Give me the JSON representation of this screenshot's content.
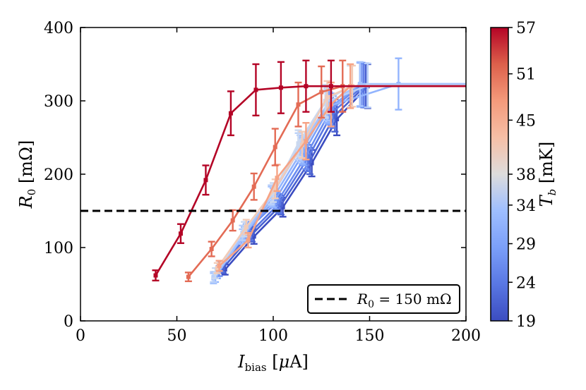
{
  "chart_data": {
    "type": "line",
    "xlabel": "I_bias [μA]",
    "ylabel": "R_0 [mΩ]",
    "xlim": [
      0,
      200
    ],
    "ylim": [
      0,
      400
    ],
    "xticks": [
      "0",
      "50",
      "100",
      "150",
      "200"
    ],
    "yticks": [
      "0",
      "100",
      "200",
      "300",
      "400"
    ],
    "grid": false,
    "legend": {
      "placement": "lower-right",
      "entries": [
        {
          "label": "R_0 = 150 mΩ",
          "style": "dashed",
          "color": "#000000"
        }
      ]
    },
    "hline": {
      "y": 150,
      "style": "dashed",
      "color": "#000000"
    },
    "colorbar": {
      "label": "T_b [mK]",
      "range": [
        19,
        57
      ],
      "ticks": [
        "19",
        "24",
        "29",
        "34",
        "38",
        "45",
        "51",
        "57"
      ],
      "colormap": "coolwarm"
    },
    "series": [
      {
        "T": 19,
        "color": "#3b4cc0",
        "x": [
          75,
          90,
          105,
          120,
          133,
          149
        ],
        "y": [
          70,
          115,
          155,
          215,
          275,
          320
        ],
        "err": [
          7,
          10,
          13,
          18,
          22,
          30
        ]
      },
      {
        "T": 22,
        "color": "#4961d2",
        "x": [
          74,
          89,
          104,
          119,
          132,
          148
        ],
        "y": [
          72,
          118,
          158,
          218,
          280,
          321
        ],
        "err": [
          7,
          10,
          13,
          18,
          22,
          30
        ]
      },
      {
        "T": 24,
        "color": "#5977e3",
        "x": [
          73,
          88,
          103,
          118,
          131,
          147
        ],
        "y": [
          74,
          120,
          160,
          222,
          285,
          321
        ],
        "err": [
          7,
          10,
          13,
          18,
          22,
          30
        ]
      },
      {
        "T": 27,
        "color": "#6b8df0",
        "x": [
          72,
          87,
          102,
          117,
          130,
          146
        ],
        "y": [
          68,
          125,
          162,
          225,
          288,
          322
        ],
        "err": [
          7,
          10,
          13,
          18,
          22,
          30
        ]
      },
      {
        "T": 29,
        "color": "#7ea2f9",
        "x": [
          71,
          86,
          101,
          116,
          129,
          145
        ],
        "y": [
          65,
          122,
          165,
          230,
          290,
          322
        ],
        "err": [
          7,
          10,
          13,
          18,
          22,
          30
        ]
      },
      {
        "T": 32,
        "color": "#92b4fe",
        "x": [
          70,
          85,
          100,
          115,
          128,
          165
        ],
        "y": [
          60,
          118,
          168,
          232,
          292,
          323
        ],
        "err": [
          7,
          10,
          13,
          18,
          22,
          35
        ]
      },
      {
        "T": 34,
        "color": "#a5c3fe",
        "x": [
          69,
          84,
          99,
          114,
          128,
          145
        ],
        "y": [
          58,
          115,
          170,
          235,
          295,
          323
        ],
        "err": [
          7,
          10,
          13,
          18,
          22,
          30
        ]
      },
      {
        "T": 36,
        "color": "#b9d0f9",
        "x": [
          69,
          84,
          99,
          113,
          127,
          149
        ],
        "y": [
          60,
          120,
          172,
          238,
          298,
          321
        ],
        "err": [
          7,
          10,
          13,
          18,
          22,
          30
        ]
      },
      {
        "T": 38,
        "color": "#cad8ef",
        "x": [
          70,
          85,
          100,
          113,
          127,
          140
        ],
        "y": [
          65,
          125,
          175,
          242,
          300,
          320
        ],
        "err": [
          7,
          10,
          13,
          18,
          22,
          28
        ]
      },
      {
        "T": 41,
        "color": "#f2cbb7",
        "x": [
          71,
          86,
          101,
          115,
          128,
          141
        ],
        "y": [
          72,
          128,
          180,
          240,
          305,
          320
        ],
        "err": [
          7,
          10,
          13,
          18,
          22,
          28
        ]
      },
      {
        "T": 45,
        "color": "#f6a385",
        "x": [
          72,
          87,
          102,
          117,
          130,
          140
        ],
        "y": [
          75,
          110,
          195,
          245,
          295,
          320
        ],
        "err": [
          7,
          10,
          18,
          25,
          30,
          30
        ]
      },
      {
        "T": 51,
        "color": "#e36b55",
        "x": [
          56,
          68,
          79,
          90,
          101,
          113,
          125,
          136
        ],
        "y": [
          60,
          98,
          137,
          183,
          237,
          295,
          312,
          320
        ],
        "err": [
          6,
          10,
          14,
          18,
          25,
          30,
          35,
          35
        ]
      },
      {
        "T": 57,
        "color": "#b40426",
        "x": [
          39,
          52,
          65,
          78,
          91,
          104,
          117,
          130
        ],
        "y": [
          62,
          119,
          192,
          283,
          315,
          318,
          320,
          320
        ],
        "err": [
          7,
          13,
          20,
          30,
          35,
          35,
          35,
          35
        ]
      }
    ]
  }
}
